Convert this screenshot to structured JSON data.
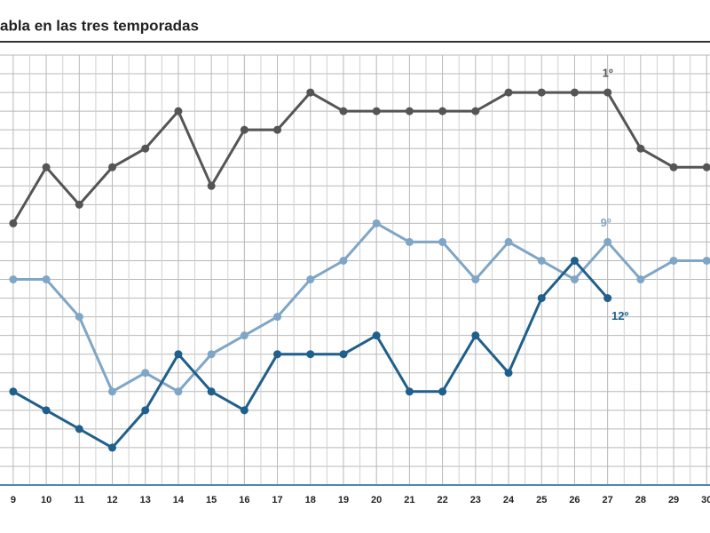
{
  "chart_data": {
    "type": "line",
    "title": "abla en las tres temporadas",
    "x": [
      9,
      10,
      11,
      12,
      13,
      14,
      15,
      16,
      17,
      18,
      19,
      20,
      21,
      22,
      23,
      24,
      25,
      26,
      27,
      28,
      29,
      30
    ],
    "xlim": [
      8.6,
      30.1
    ],
    "xticks": [
      9,
      10,
      11,
      12,
      13,
      14,
      15,
      16,
      17,
      18,
      19,
      20,
      21,
      22,
      23,
      24,
      25,
      26,
      27,
      28,
      29,
      30
    ],
    "ylim": [
      22,
      -1
    ],
    "yticks": [
      -1,
      0,
      1,
      2,
      3,
      4,
      5,
      6,
      7,
      8,
      9,
      10,
      11,
      12,
      13,
      14,
      15,
      16,
      17,
      18,
      19,
      20,
      21
    ],
    "grid": true,
    "series": [
      {
        "color": "#555555",
        "values": [
          8,
          5,
          7,
          5,
          4,
          2,
          6,
          3,
          3,
          1,
          2,
          2,
          2,
          2,
          2,
          1,
          1,
          1,
          1,
          4,
          5,
          5
        ]
      },
      {
        "color": "#7fa6c6",
        "values": [
          11,
          11,
          13,
          17,
          16,
          17,
          15,
          14,
          13,
          11,
          10,
          8,
          9,
          9,
          11,
          9,
          10,
          11,
          9,
          11,
          10,
          10
        ]
      },
      {
        "color": "#1f5f8b",
        "values": [
          17,
          18,
          19,
          20,
          18,
          15,
          17,
          18,
          15,
          15,
          15,
          14,
          17,
          17,
          14,
          16,
          12,
          10,
          12,
          null,
          null,
          null
        ]
      }
    ],
    "annotations": [
      {
        "text": "1º",
        "x": 27,
        "y": 1,
        "color": "#555555"
      },
      {
        "text": "9º",
        "x": 27,
        "y": 9,
        "color": "#7fa6c6"
      },
      {
        "text": "12º",
        "x": 27,
        "y": 12,
        "color": "#1f5f8b"
      }
    ]
  }
}
